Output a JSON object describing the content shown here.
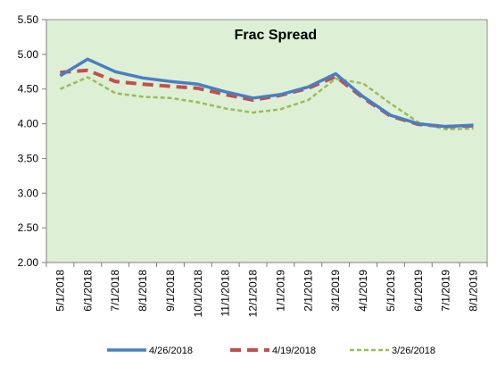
{
  "chart_data": {
    "type": "line",
    "title": "Frac Spread",
    "xlabel": "",
    "ylabel": "",
    "ylim": [
      2.0,
      5.5
    ],
    "yticks": [
      "5.50",
      "5.00",
      "4.50",
      "4.00",
      "3.50",
      "3.00",
      "2.50",
      "2.00"
    ],
    "ytick_values": [
      5.5,
      5.0,
      4.5,
      4.0,
      3.5,
      3.0,
      2.5,
      2.0
    ],
    "categories": [
      "5/1/2018",
      "6/1/2018",
      "7/1/2018",
      "8/1/2018",
      "9/1/2018",
      "10/1/2018",
      "11/1/2018",
      "12/1/2018",
      "1/1/2019",
      "2/1/2019",
      "3/1/2019",
      "4/1/2019",
      "5/1/2019",
      "6/1/2019",
      "7/1/2019",
      "8/1/2019"
    ],
    "grid": false,
    "plot_background": "#DDF0D5",
    "legend_position": "bottom",
    "series": [
      {
        "name": "4/26/2018",
        "color": "#4A7EC2",
        "style": "solid",
        "values": [
          4.69,
          4.93,
          4.75,
          4.66,
          4.61,
          4.57,
          4.46,
          4.37,
          4.42,
          4.53,
          4.72,
          4.39,
          4.12,
          4.0,
          3.96,
          3.98
        ]
      },
      {
        "name": "4/19/2018",
        "color": "#C0504D",
        "style": "dashed",
        "values": [
          4.74,
          4.77,
          4.61,
          4.57,
          4.54,
          4.51,
          4.42,
          4.34,
          4.41,
          4.51,
          4.68,
          4.37,
          4.11,
          3.99,
          3.96,
          3.97
        ]
      },
      {
        "name": "3/26/2018",
        "color": "#9BBB59",
        "style": "dotted",
        "values": [
          4.5,
          4.67,
          4.44,
          4.39,
          4.37,
          4.31,
          4.22,
          4.16,
          4.21,
          4.34,
          4.65,
          4.58,
          4.29,
          4.02,
          3.92,
          3.93
        ]
      }
    ]
  }
}
